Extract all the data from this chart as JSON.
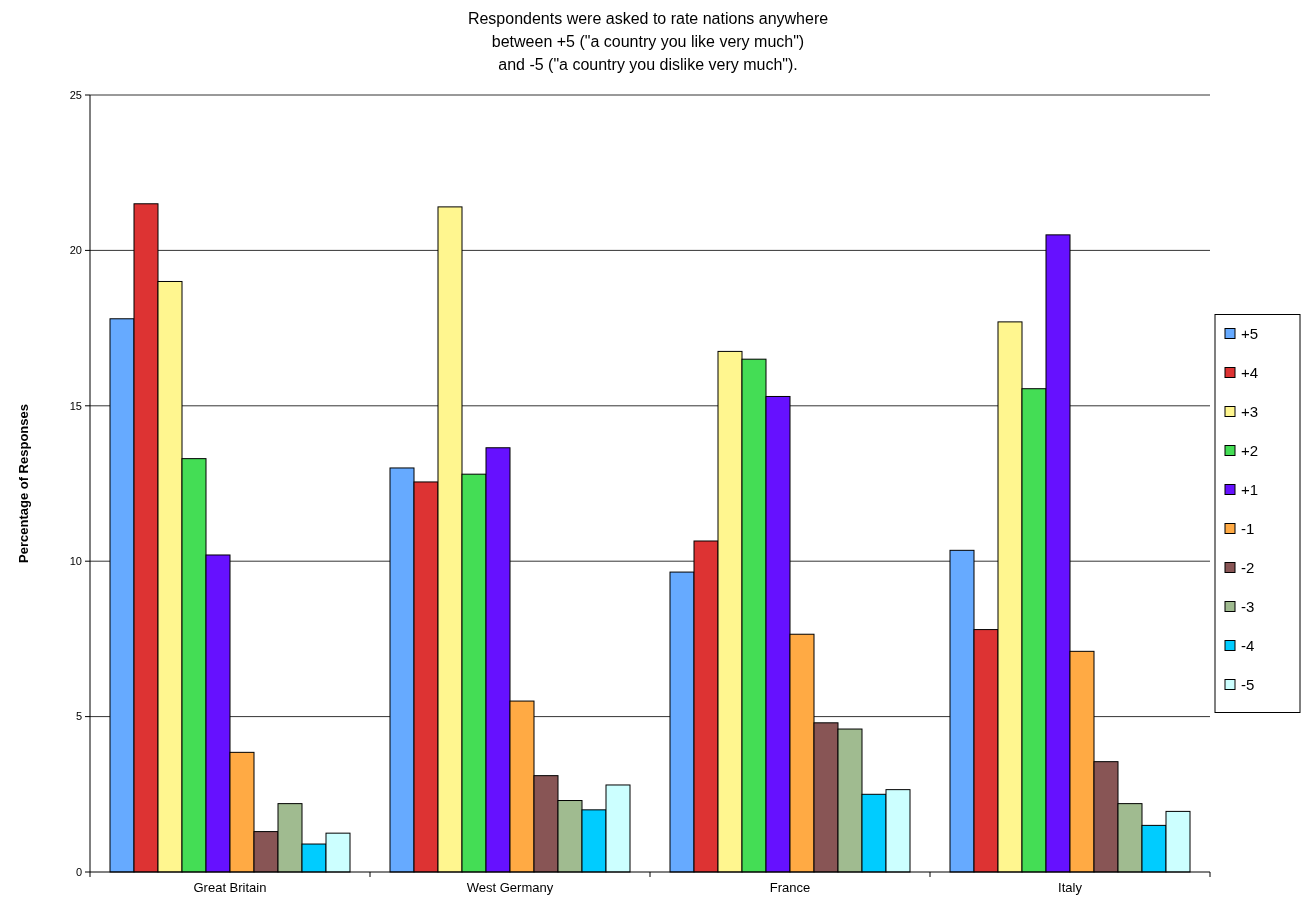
{
  "chart_data": {
    "type": "bar",
    "title": "Respondents were asked to rate nations anywhere\nbetween +5 (\"a country you like very much\")\nand -5 (\"a country you dislike very much\").",
    "ylabel": "Percentage of Responses",
    "categories": [
      "Great Britain",
      "West Germany",
      "France",
      "Italy"
    ],
    "series": [
      {
        "name": "+5",
        "color": "#66aaff",
        "values": [
          17.8,
          13.0,
          9.65,
          10.35
        ]
      },
      {
        "name": "+4",
        "color": "#dd3333",
        "values": [
          21.5,
          12.55,
          10.65,
          7.8
        ]
      },
      {
        "name": "+3",
        "color": "#fff68f",
        "values": [
          19.0,
          21.4,
          16.75,
          17.7
        ]
      },
      {
        "name": "+2",
        "color": "#44dd55",
        "values": [
          13.3,
          12.8,
          16.5,
          15.55
        ]
      },
      {
        "name": "+1",
        "color": "#6611ff",
        "values": [
          10.2,
          13.65,
          15.3,
          20.5
        ]
      },
      {
        "name": "-1",
        "color": "#ffaa44",
        "values": [
          3.85,
          5.5,
          7.65,
          7.1
        ]
      },
      {
        "name": "-2",
        "color": "#885555",
        "values": [
          1.3,
          3.1,
          4.8,
          3.55
        ]
      },
      {
        "name": "-3",
        "color": "#a0bb90",
        "values": [
          2.2,
          2.3,
          4.6,
          2.2
        ]
      },
      {
        "name": "-4",
        "color": "#00ccff",
        "values": [
          0.9,
          2.0,
          2.5,
          1.5
        ]
      },
      {
        "name": "-5",
        "color": "#ccffff",
        "values": [
          1.25,
          2.8,
          2.65,
          1.95
        ]
      }
    ],
    "ylim": [
      0,
      25
    ],
    "yticks": [
      0,
      5,
      10,
      15,
      20,
      25
    ],
    "grid": "y",
    "legend": "right"
  }
}
